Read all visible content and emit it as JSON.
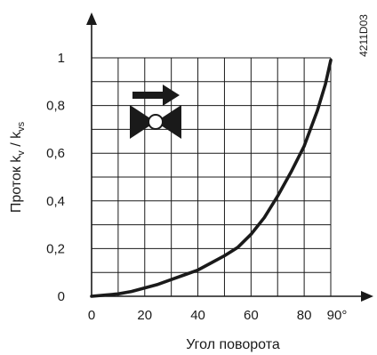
{
  "chart_data": {
    "type": "line",
    "title": "",
    "xlabel": "Угол поворота",
    "ylabel_main": "Проток k",
    "ylabel_sub1": "v",
    "ylabel_sep": " / k",
    "ylabel_sub2": "vs",
    "xlim": [
      0,
      90
    ],
    "ylim": [
      0,
      1
    ],
    "grid": true,
    "x_ticks": [
      0,
      20,
      40,
      60,
      80,
      90
    ],
    "x_tick_labels": [
      "0",
      "20",
      "40",
      "60",
      "80",
      "90°"
    ],
    "y_ticks": [
      0,
      0.2,
      0.4,
      0.6,
      0.8,
      1
    ],
    "y_tick_labels": [
      "0",
      "0,2",
      "0,4",
      "0,6",
      "0,8",
      "1"
    ],
    "series": [
      {
        "x": [
          0,
          5,
          10,
          15,
          20,
          25,
          30,
          35,
          40,
          45,
          50,
          55,
          60,
          65,
          70,
          75,
          80,
          85,
          88,
          90
        ],
        "y": [
          0,
          0.005,
          0.01,
          0.02,
          0.035,
          0.05,
          0.07,
          0.09,
          0.11,
          0.14,
          0.17,
          0.205,
          0.26,
          0.33,
          0.42,
          0.52,
          0.63,
          0.78,
          0.89,
          0.99
        ]
      }
    ],
    "color": "#1a1a1a"
  },
  "figure_code": "4211D03",
  "icons": {
    "valve": "valve-icon",
    "flow_direction": "flow-arrow-icon"
  }
}
